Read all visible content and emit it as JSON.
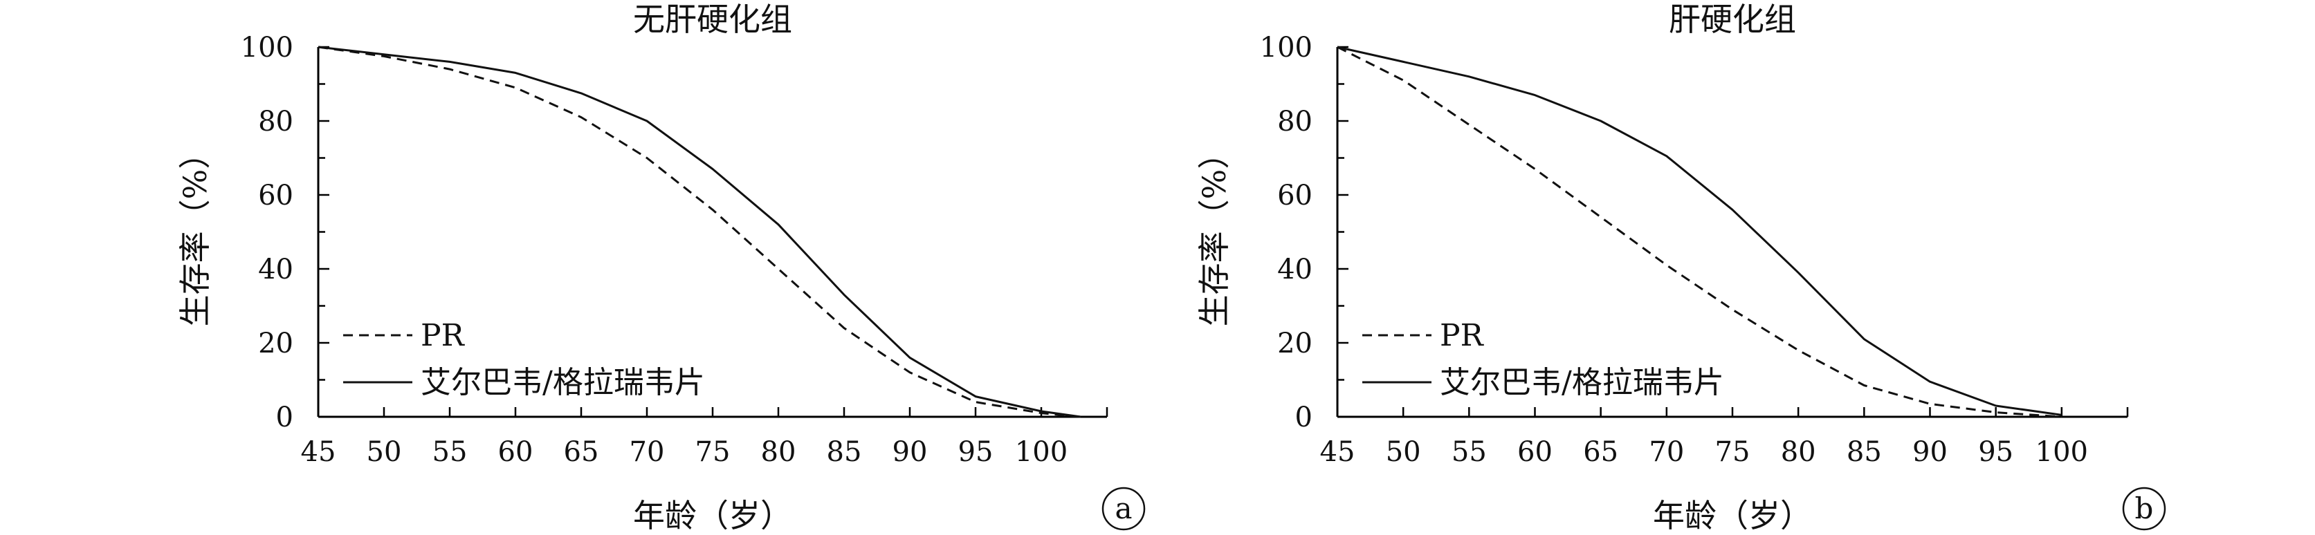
{
  "chart_data": [
    {
      "panel_label": "a",
      "type": "line",
      "title": "无肝硬化组",
      "xlabel": "年龄（岁）",
      "ylabel": "生存率（%）",
      "xlim": [
        45,
        105
      ],
      "ylim": [
        0,
        100
      ],
      "x_ticks": [
        45,
        50,
        55,
        60,
        65,
        70,
        75,
        80,
        85,
        90,
        95,
        100
      ],
      "y_ticks": [
        0,
        20,
        40,
        60,
        80,
        100
      ],
      "legend_position": "bottom-left",
      "series": [
        {
          "name": "PR",
          "style": "dashed",
          "x": [
            45,
            50,
            55,
            60,
            65,
            70,
            75,
            80,
            85,
            90,
            95,
            100,
            103
          ],
          "y": [
            100,
            97.5,
            94,
            89,
            81,
            70,
            56,
            40,
            24,
            12,
            4,
            1,
            0
          ]
        },
        {
          "name": "艾尔巴韦/格拉瑞韦片",
          "style": "solid",
          "x": [
            45,
            50,
            55,
            60,
            65,
            70,
            75,
            80,
            85,
            90,
            95,
            100,
            103
          ],
          "y": [
            100,
            98,
            96,
            93,
            87.5,
            80,
            67,
            52,
            33,
            16,
            5.5,
            1.5,
            0
          ]
        }
      ]
    },
    {
      "panel_label": "b",
      "type": "line",
      "title": "肝硬化组",
      "xlabel": "年龄（岁）",
      "ylabel": "生存率（%）",
      "xlim": [
        45,
        105
      ],
      "ylim": [
        0,
        100
      ],
      "x_ticks": [
        45,
        50,
        55,
        60,
        65,
        70,
        75,
        80,
        85,
        90,
        95,
        100
      ],
      "y_ticks": [
        0,
        20,
        40,
        60,
        80,
        100
      ],
      "legend_position": "bottom-left",
      "series": [
        {
          "name": "PR",
          "style": "dashed",
          "x": [
            45,
            50,
            55,
            60,
            65,
            70,
            75,
            80,
            85,
            90,
            95,
            100
          ],
          "y": [
            100,
            91,
            79,
            67,
            54,
            41,
            29,
            18,
            8.5,
            3.5,
            1.2,
            0
          ]
        },
        {
          "name": "艾尔巴韦/格拉瑞韦片",
          "style": "solid",
          "x": [
            45,
            50,
            55,
            60,
            65,
            70,
            75,
            80,
            85,
            90,
            95,
            100
          ],
          "y": [
            100,
            96,
            92,
            87,
            80,
            70.5,
            56,
            39,
            21,
            9.5,
            3,
            0.5
          ]
        }
      ]
    }
  ]
}
